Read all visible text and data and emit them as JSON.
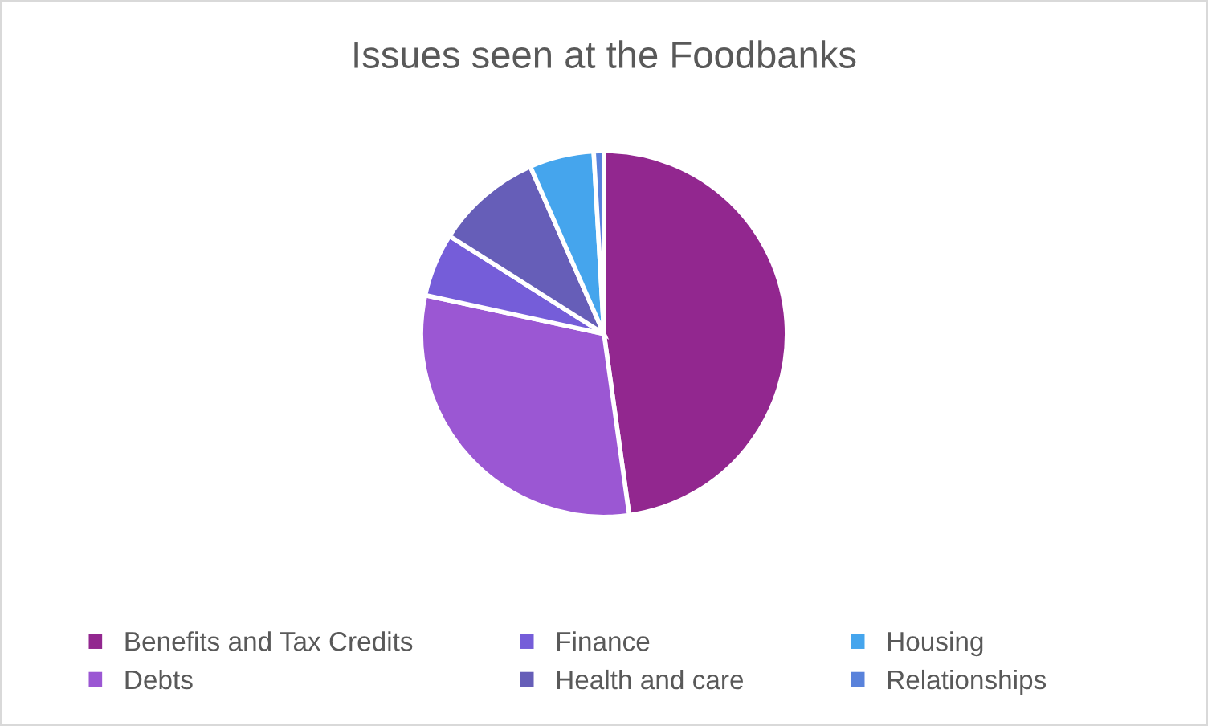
{
  "chart_data": {
    "type": "pie",
    "title": "Issues seen at the Foodbanks",
    "categories": [
      "Benefits and Tax Credits",
      "Debts",
      "Finance",
      "Health and care",
      "Housing",
      "Relationships"
    ],
    "values": [
      47.8,
      30.6,
      5.6,
      9.4,
      5.7,
      0.9
    ],
    "colors": [
      "#92278f",
      "#9b57d3",
      "#755dd9",
      "#665eb8",
      "#45a5ed",
      "#5982db"
    ],
    "legend": "bottom"
  }
}
